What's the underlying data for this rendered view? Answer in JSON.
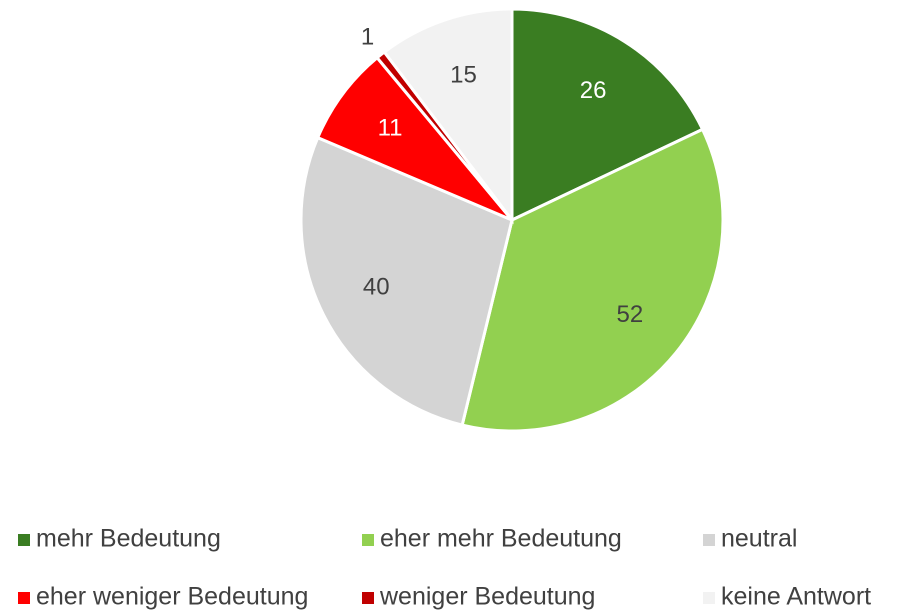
{
  "chart_data": {
    "type": "pie",
    "categories": [
      "mehr Bedeutung",
      "eher mehr Bedeutung",
      "neutral",
      "eher weniger Bedeutung",
      "weniger Bedeutung",
      "keine Antwort"
    ],
    "values": [
      26,
      52,
      40,
      11,
      1,
      15
    ],
    "colors": [
      "#3a7d22",
      "#92d050",
      "#d4d4d4",
      "#ff0000",
      "#c00000",
      "#f2f2f2"
    ]
  }
}
